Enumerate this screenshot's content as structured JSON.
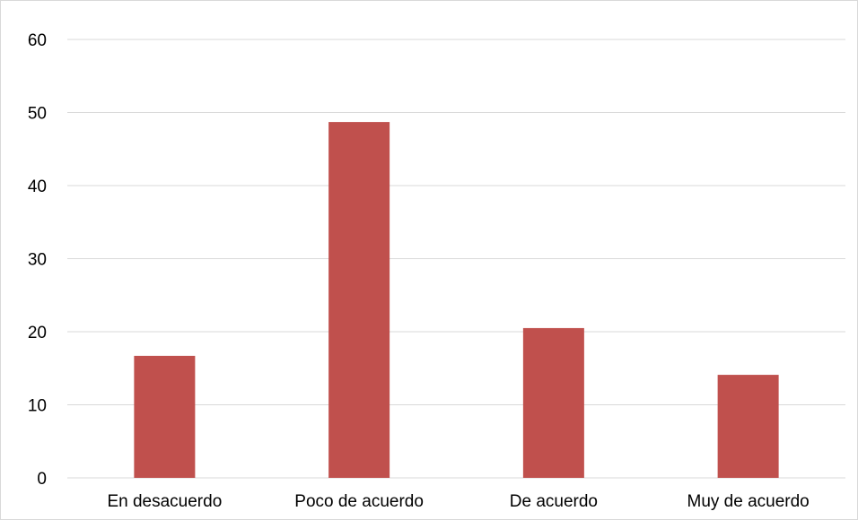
{
  "chart_data": {
    "type": "bar",
    "title": "",
    "xlabel": "",
    "ylabel": "",
    "categories": [
      "En desacuerdo",
      "Poco de acuerdo",
      "De acuerdo",
      "Muy de acuerdo"
    ],
    "values": [
      16.7,
      48.7,
      20.5,
      14.1
    ],
    "ylim": [
      0,
      60
    ],
    "yticks": [
      "0",
      "10",
      "20",
      "30",
      "40",
      "50",
      "60"
    ],
    "grid": true,
    "legend": "none",
    "bar_color": "#c0504d",
    "grid_color": "#d9d9d9"
  }
}
